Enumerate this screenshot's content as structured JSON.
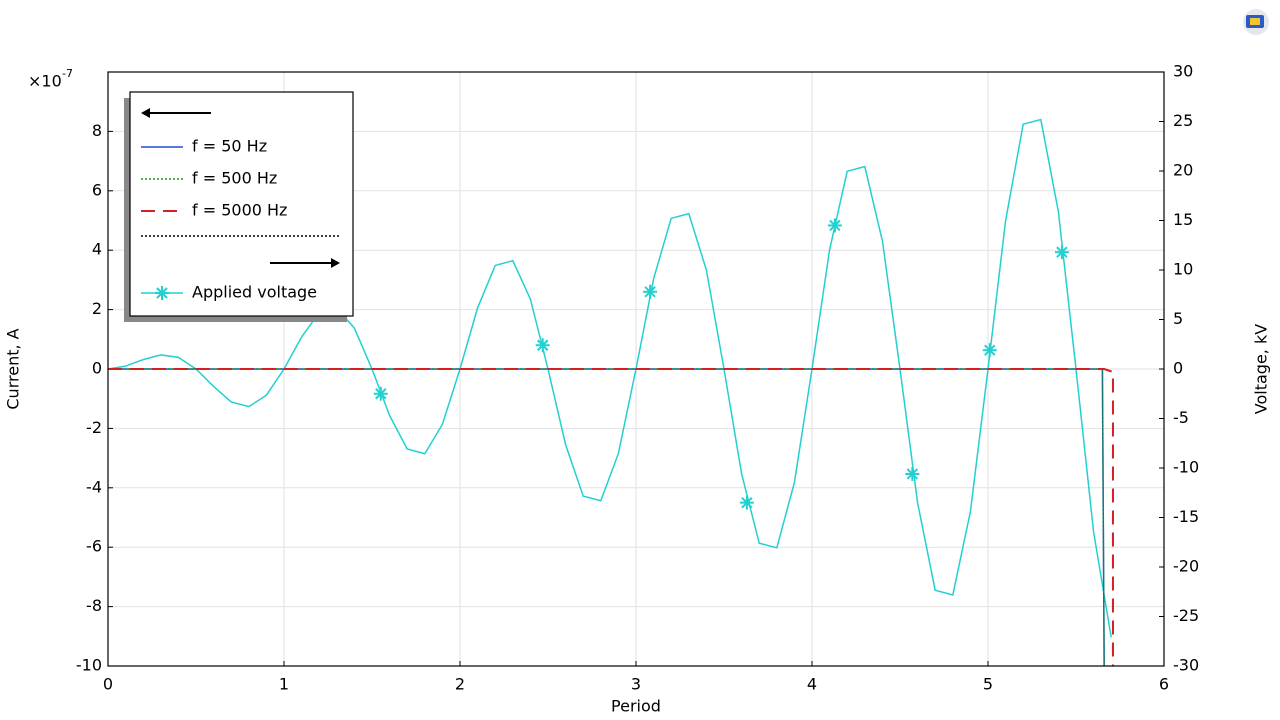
{
  "chart_data": {
    "type": "line",
    "xlabel": "Period",
    "ylabel": "Current, A",
    "y2label": "Voltage, kV",
    "y_multiplier": "×10",
    "y_multiplier_exponent": "-7",
    "xlim": [
      0,
      6
    ],
    "xticks": [
      0,
      1,
      2,
      3,
      4,
      5,
      6
    ],
    "ylim": [
      -10,
      10
    ],
    "yticks": [
      -10,
      -8,
      -6,
      -4,
      -2,
      0,
      2,
      4,
      6,
      8
    ],
    "y2lim": [
      -30,
      30
    ],
    "y2ticks": [
      -30,
      -25,
      -20,
      -15,
      -10,
      -5,
      0,
      5,
      10,
      15,
      20,
      25,
      30
    ],
    "grid": true,
    "series": [
      {
        "name": "f = 50 Hz",
        "color": "#1f4fd1",
        "style": "solid",
        "x": [
          0,
          5.65,
          5.66
        ],
        "values": [
          0,
          0,
          -10
        ]
      },
      {
        "name": "f = 500 Hz",
        "color": "#1a9a1a",
        "style": "dotted",
        "x": [
          0,
          5.65,
          5.66
        ],
        "values": [
          0,
          0,
          -10
        ]
      },
      {
        "name": "f = 5000 Hz",
        "color": "#d42020",
        "style": "dashed",
        "x": [
          0,
          5.66,
          5.71,
          5.71
        ],
        "values": [
          0,
          0,
          -0.1,
          -10
        ]
      },
      {
        "name": "Applied voltage",
        "color": "#22d0d0",
        "style": "solid",
        "axis": "y2",
        "x": [
          0,
          0.1,
          0.2,
          0.3,
          0.4,
          0.5,
          0.6,
          0.7,
          0.8,
          0.9,
          1.0,
          1.1,
          1.2,
          1.3,
          1.4,
          1.5,
          1.6,
          1.7,
          1.8,
          1.9,
          2.0,
          2.1,
          2.2,
          2.3,
          2.4,
          2.5,
          2.6,
          2.7,
          2.8,
          2.9,
          3.0,
          3.1,
          3.2,
          3.3,
          3.4,
          3.5,
          3.6,
          3.7,
          3.8,
          3.9,
          4.0,
          4.1,
          4.2,
          4.3,
          4.4,
          4.5,
          4.6,
          4.7,
          4.8,
          4.9,
          5.0,
          5.1,
          5.2,
          5.3,
          5.4,
          5.5,
          5.6,
          5.7
        ],
        "values": [
          0,
          0.29,
          0.95,
          1.43,
          1.18,
          0,
          -1.76,
          -3.33,
          -3.8,
          -2.65,
          0,
          3.23,
          5.71,
          6.18,
          4.12,
          0,
          -4.7,
          -8.08,
          -8.56,
          -5.59,
          0,
          6.17,
          10.46,
          10.94,
          7.06,
          0,
          -7.64,
          -12.84,
          -13.31,
          -8.53,
          0,
          9.11,
          15.22,
          15.69,
          10.0,
          0,
          -10.58,
          -17.59,
          -18.07,
          -11.47,
          0,
          12.05,
          19.97,
          20.45,
          12.94,
          0,
          -13.52,
          -22.35,
          -22.82,
          -14.41,
          0,
          14.99,
          24.73,
          25.2,
          15.88,
          0,
          -16.46,
          -27.1
        ],
        "marker_x": [
          1.55,
          2.47,
          3.08,
          3.63,
          4.13,
          4.57,
          5.01,
          5.42
        ],
        "marker_values": [
          -2.5,
          2.4,
          7.8,
          -13.5,
          14.5,
          -10.6,
          1.9,
          11.8
        ]
      }
    ]
  }
}
